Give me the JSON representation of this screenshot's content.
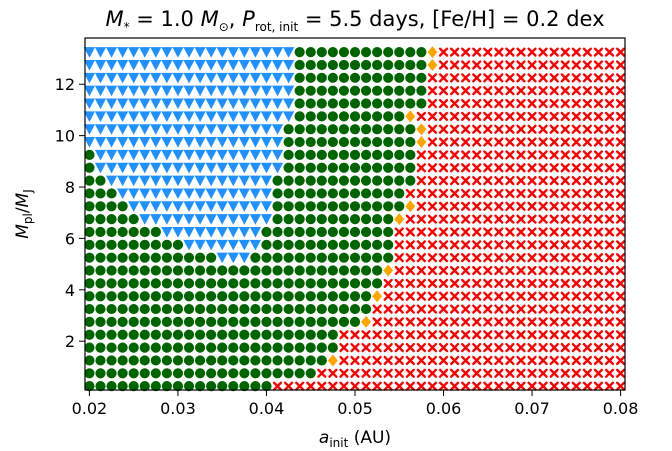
{
  "chart_data": {
    "type": "scatter",
    "title": {
      "mstar_symbol": "M",
      "mstar_sub": "*",
      "mstar_eq": " = 1.0 ",
      "msun_symbol": "M",
      "msun_sub": "⊙",
      "sep1": ", ",
      "prot_symbol": "P",
      "prot_sub": "rot, init",
      "prot_eq": " = 5.5 days, [Fe/H] = 0.2 dex"
    },
    "xlabel": {
      "symbol": "a",
      "sub": "init",
      "unit": " (AU)"
    },
    "ylabel": {
      "num": "M",
      "num_sub": "pl",
      "slash": "/",
      "den": "M",
      "den_sub": "J"
    },
    "xlim": [
      0.0195,
      0.0805
    ],
    "ylim": [
      0.1,
      13.8
    ],
    "xticks": [
      0.02,
      0.03,
      0.04,
      0.05,
      0.06,
      0.07,
      0.08
    ],
    "xtick_labels": [
      "0.02",
      "0.03",
      "0.04",
      "0.05",
      "0.06",
      "0.07",
      "0.08"
    ],
    "yticks": [
      2,
      4,
      6,
      8,
      10,
      12
    ],
    "ytick_labels": [
      "2",
      "4",
      "6",
      "8",
      "10",
      "12"
    ],
    "grid": false,
    "colors": {
      "survived": "#006400",
      "triangle": "#1e90ff",
      "diamond": "#ffa500",
      "cross": "#ff0000"
    },
    "grid_points": {
      "x_start": 0.02,
      "x_step": 0.00125,
      "nx": 49,
      "y_start": 0.25,
      "y_step": 0.5,
      "ny": 27
    },
    "boundaries": {
      "note": "per-row x values (AU): orange diamond position (0 = none), first red-cross x, blue-triangle upper x bound (0 = none), blue-triangle lower x bound",
      "diamond_x": [
        0,
        0,
        0.0475,
        0,
        0,
        0.05125,
        0,
        0.0525,
        0,
        0.05375,
        0,
        0,
        0,
        0.055,
        0.05625,
        0,
        0,
        0,
        0,
        0.0575,
        0.0575,
        0.05625,
        0,
        0,
        0,
        0.05875,
        0.05875
      ],
      "cross_start_x": [
        0.04125,
        0.04625,
        0.04875,
        0.04875,
        0.04875,
        0.0525,
        0.0525,
        0.05375,
        0.05375,
        0.055,
        0.055,
        0.055,
        0.055,
        0.05625,
        0.05625,
        0.05625,
        0.0575,
        0.0575,
        0.0575,
        0.05875,
        0.05875,
        0.0575,
        0.05875,
        0.05875,
        0.05875,
        0.06,
        0.06
      ],
      "triangle_max_x": [
        0,
        0,
        0,
        0,
        0,
        0,
        0,
        0,
        0,
        0,
        0.0375,
        0.03875,
        0.03875,
        0.04,
        0.04,
        0.04,
        0.04,
        0.04125,
        0.04125,
        0.04125,
        0.04125,
        0.0425,
        0.0425,
        0.0425,
        0.0425,
        0.0425,
        0.0425
      ],
      "triangle_min_x": [
        0,
        0,
        0,
        0,
        0,
        0,
        0,
        0,
        0,
        0,
        0.035,
        0.03125,
        0.02875,
        0.02625,
        0.025,
        0.02375,
        0.0225,
        0.02125,
        0.02125,
        0.02,
        0.02,
        0.02,
        0.02,
        0.02,
        0.02,
        0.02,
        0.02
      ]
    }
  }
}
